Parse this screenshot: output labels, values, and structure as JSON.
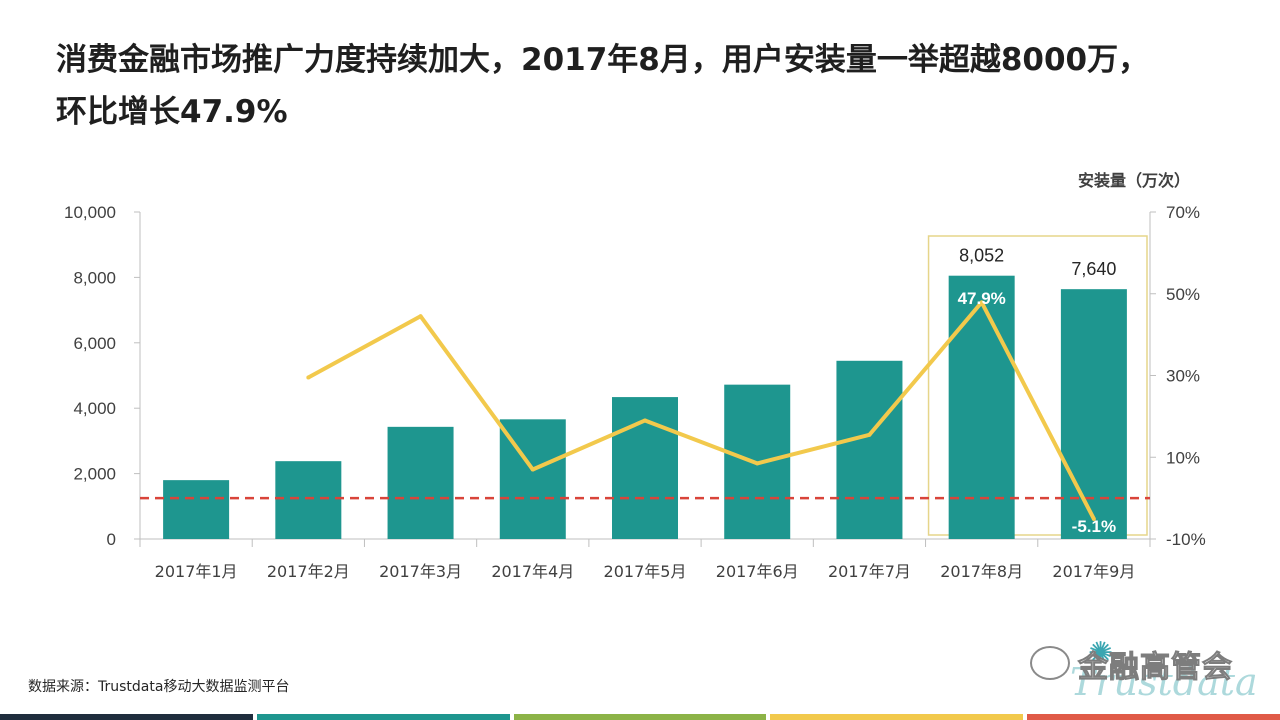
{
  "title": "消费金融市场推广力度持续加大，2017年8月，用户安装量一举超越8000万，环比增长47.9%",
  "right_axis_title": "安装量（万次）",
  "source": "数据来源：Trustdata移动大数据监测平台",
  "watermark": {
    "text": "金融高管会",
    "brand": "Trustdata",
    "icon": "wechat-icon"
  },
  "colors": {
    "bar": "#1e968f",
    "line": "#f2c94c",
    "baseline": "#d9443a",
    "highlight_box": "#e6d58a",
    "bottom_bar": [
      "#1f2d3d",
      "#1e968f",
      "#8cb347",
      "#f2c94c",
      "#e05a47"
    ]
  },
  "chart_data": {
    "type": "bar",
    "categories": [
      "2017年1月",
      "2017年2月",
      "2017年3月",
      "2017年4月",
      "2017年5月",
      "2017年6月",
      "2017年7月",
      "2017年8月",
      "2017年9月"
    ],
    "series": [
      {
        "values": [
          1800,
          2380,
          3430,
          3660,
          4340,
          4720,
          5450,
          8052,
          7640
        ]
      },
      {
        "values": [
          null,
          29.5,
          44.5,
          7.0,
          19.0,
          8.5,
          15.5,
          47.9,
          -5.1
        ]
      }
    ],
    "data_labels": [
      "8,052",
      "7,640"
    ],
    "pct_labels": [
      "47.9%",
      "-5.1%"
    ],
    "y_left_ticks": [
      "0",
      "2,000",
      "4,000",
      "6,000",
      "8,000",
      "10,000"
    ],
    "y_right_ticks": [
      "-10%",
      "10%",
      "30%",
      "50%",
      "70%"
    ],
    "ylim": [
      0,
      10000
    ],
    "ylim_right": [
      -10,
      70
    ],
    "reference_line_right": 0,
    "highlight_categories": [
      "2017年8月",
      "2017年9月"
    ]
  }
}
